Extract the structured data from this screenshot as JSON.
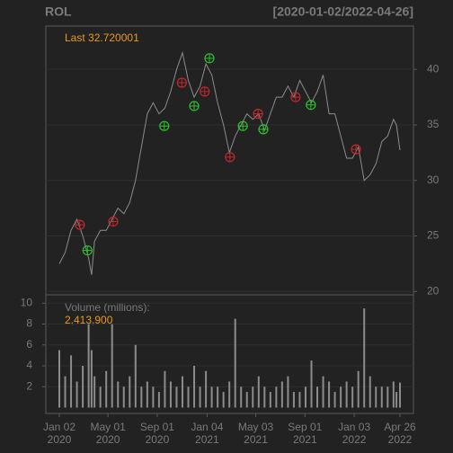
{
  "chart_data": [
    {
      "type": "line",
      "title": "ROL",
      "subtitle": "[2020-01-02/2022-04-26]",
      "annotation": "Last 32.720001",
      "color": "#8c8c8c",
      "grid": true,
      "x": [
        0,
        10,
        20,
        30,
        40,
        50,
        55,
        60,
        70,
        80,
        90,
        100,
        110,
        120,
        130,
        140,
        150,
        160,
        170,
        180,
        190,
        200,
        210,
        220,
        230,
        240,
        250,
        260,
        270,
        280,
        290,
        300,
        310,
        320,
        330,
        340,
        350,
        360,
        370,
        380,
        390,
        400,
        410,
        420,
        430,
        440,
        450,
        460,
        470,
        480,
        490,
        500,
        510,
        520,
        530,
        540,
        550,
        560,
        570,
        575,
        581
      ],
      "values": [
        22.5,
        23.5,
        25.5,
        26.5,
        25,
        23,
        21.5,
        24.5,
        25.5,
        25.5,
        26.5,
        27.5,
        27,
        28,
        30,
        33,
        36,
        37,
        36,
        36.5,
        38,
        40,
        41.5,
        39,
        37.5,
        38.5,
        40.5,
        39.5,
        37,
        35,
        32.5,
        34,
        35,
        36,
        35.5,
        36,
        34.5,
        36,
        37.5,
        37.5,
        38.5,
        37.5,
        39,
        38,
        37,
        38,
        39.5,
        36,
        36,
        34,
        32,
        32,
        33,
        30,
        30.5,
        31.5,
        33.5,
        34,
        35.5,
        35,
        32.72
      ],
      "markers": [
        {
          "x": 35,
          "y": 26.0,
          "color": "#c0282d"
        },
        {
          "x": 92,
          "y": 26.3,
          "color": "#c0282d"
        },
        {
          "x": 209,
          "y": 38.8,
          "color": "#c0282d"
        },
        {
          "x": 248,
          "y": 38.0,
          "color": "#c0282d"
        },
        {
          "x": 291,
          "y": 32.1,
          "color": "#c0282d"
        },
        {
          "x": 339,
          "y": 36.0,
          "color": "#c0282d"
        },
        {
          "x": 403,
          "y": 37.5,
          "color": "#c0282d"
        },
        {
          "x": 506,
          "y": 32.8,
          "color": "#c0282d"
        },
        {
          "x": 48,
          "y": 23.7,
          "color": "#2fc02f"
        },
        {
          "x": 179,
          "y": 34.9,
          "color": "#2fc02f"
        },
        {
          "x": 230,
          "y": 36.7,
          "color": "#2fc02f"
        },
        {
          "x": 256,
          "y": 41.0,
          "color": "#2fc02f"
        },
        {
          "x": 313,
          "y": 34.9,
          "color": "#2fc02f"
        },
        {
          "x": 348,
          "y": 34.6,
          "color": "#2fc02f"
        },
        {
          "x": 429,
          "y": 36.8,
          "color": "#2fc02f"
        }
      ],
      "xlim": [
        -23,
        604
      ],
      "ylim": [
        19.7,
        43.9
      ],
      "yticks": [
        20,
        25,
        30,
        35,
        40
      ]
    },
    {
      "type": "bar",
      "title": "Volume (millions):",
      "annotation": "2,413,900",
      "color": "#8c8c8c",
      "grid": true,
      "x": [
        0,
        10,
        20,
        30,
        40,
        50,
        55,
        60,
        70,
        80,
        90,
        100,
        110,
        120,
        130,
        140,
        150,
        160,
        170,
        180,
        190,
        200,
        210,
        220,
        230,
        240,
        250,
        260,
        270,
        280,
        290,
        300,
        310,
        320,
        330,
        340,
        350,
        360,
        370,
        380,
        390,
        400,
        410,
        420,
        430,
        440,
        450,
        460,
        470,
        480,
        490,
        500,
        510,
        520,
        530,
        540,
        550,
        560,
        570,
        575,
        581
      ],
      "values": [
        5.5,
        3,
        5,
        2.5,
        4,
        8,
        5.5,
        3,
        2,
        3.5,
        8,
        2.5,
        2,
        3,
        6,
        2,
        2.5,
        2,
        1.5,
        3.5,
        2.5,
        2,
        3,
        2,
        4,
        2,
        3.5,
        2,
        2,
        1.5,
        2.5,
        8.5,
        2,
        1.5,
        2,
        3,
        2,
        1.5,
        2,
        2.5,
        3,
        1.5,
        1.5,
        2,
        4.5,
        2,
        3,
        2.5,
        1.5,
        2,
        2.5,
        2,
        3.5,
        9.5,
        3,
        2,
        2,
        2,
        2.5,
        1.5,
        2.4
      ],
      "xlim": [
        -23,
        604
      ],
      "ylim": [
        -0.56,
        10.8
      ],
      "yticks": [
        2,
        4,
        6,
        8,
        10
      ],
      "xticks": [
        {
          "value": 0,
          "label": [
            "Jan 02",
            "2020"
          ]
        },
        {
          "value": 83,
          "label": [
            "May 01",
            "2020"
          ]
        },
        {
          "value": 167,
          "label": [
            "Sep 01",
            "2020"
          ]
        },
        {
          "value": 252,
          "label": [
            "Jan 04",
            "2021"
          ]
        },
        {
          "value": 335,
          "label": [
            "May 03",
            "2021"
          ]
        },
        {
          "value": 419,
          "label": [
            "Sep 01",
            "2021"
          ]
        },
        {
          "value": 503,
          "label": [
            "Jan 03",
            "2022"
          ]
        },
        {
          "value": 581,
          "label": [
            "Apr 26",
            "2022"
          ]
        }
      ]
    }
  ]
}
